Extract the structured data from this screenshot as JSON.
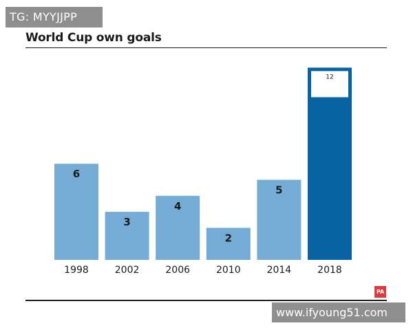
{
  "watermark_top": "TG: MYYJJPP",
  "watermark_bottom": "www.ifyoung51.com",
  "logo_text": "PA",
  "colors": {
    "bar": "#74acd6",
    "highlight": "#0863a3",
    "text": "#1a1a1a"
  },
  "chart_data": {
    "type": "bar",
    "title": "World Cup own goals",
    "categories": [
      "1998",
      "2002",
      "2006",
      "2010",
      "2014",
      "2018"
    ],
    "values": [
      6,
      3,
      4,
      2,
      5,
      12
    ],
    "data_labels": [
      "6",
      "3",
      "4",
      "2",
      "5",
      "12"
    ],
    "highlight_index": 5,
    "ylim": [
      0,
      12
    ],
    "xlabel": "",
    "ylabel": "",
    "grid": false,
    "legend": "none"
  }
}
